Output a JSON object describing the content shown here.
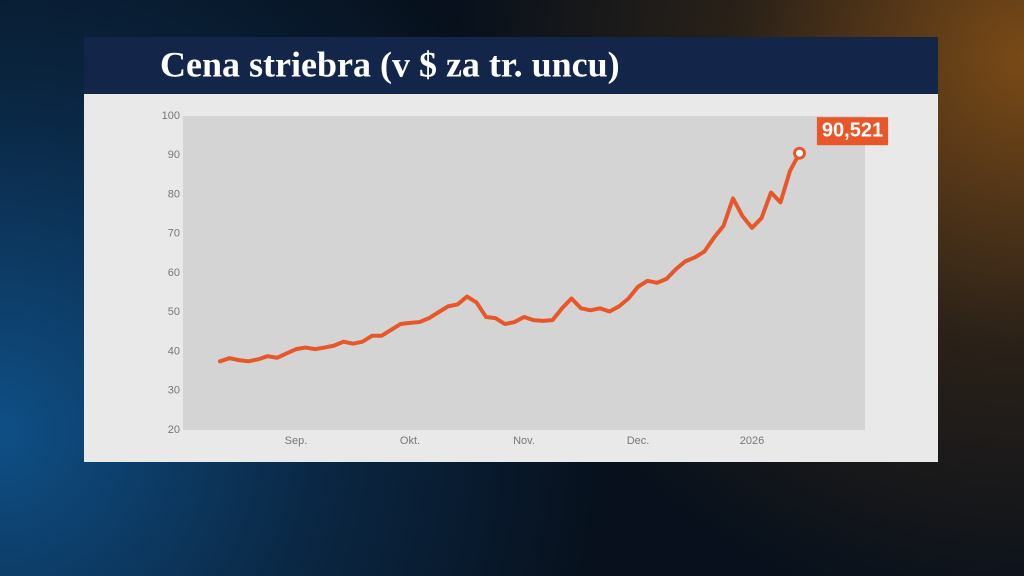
{
  "chart_data": {
    "type": "line",
    "title": "Cena striebra (v $ za tr. uncu)",
    "categories": [
      null,
      null,
      null,
      null,
      null,
      null,
      null,
      null,
      "Sep.",
      null,
      null,
      null,
      null,
      null,
      null,
      null,
      null,
      null,
      null,
      null,
      "Okt.",
      null,
      null,
      null,
      null,
      null,
      null,
      null,
      null,
      null,
      null,
      null,
      "Nov.",
      null,
      null,
      null,
      null,
      null,
      null,
      null,
      null,
      null,
      null,
      null,
      "Dec.",
      null,
      null,
      null,
      null,
      null,
      null,
      null,
      null,
      null,
      null,
      null,
      "2026",
      null,
      null,
      null,
      null,
      null
    ],
    "values": [
      37.5,
      38.3,
      37.8,
      37.5,
      38.0,
      38.8,
      38.4,
      39.5,
      40.6,
      41.0,
      40.6,
      41.0,
      41.5,
      42.5,
      42.0,
      42.5,
      44.0,
      44.0,
      45.5,
      47.0,
      47.3,
      47.5,
      48.5,
      50.0,
      51.5,
      52.0,
      54.0,
      52.5,
      48.8,
      48.5,
      47.0,
      47.5,
      48.8,
      48.0,
      47.8,
      48.0,
      51.0,
      53.5,
      51.0,
      50.5,
      51.0,
      50.2,
      51.5,
      53.5,
      56.5,
      58.0,
      57.5,
      58.5,
      61.0,
      63.0,
      64.0,
      65.5,
      69.0,
      72.0,
      79.0,
      74.5,
      71.5,
      74.0,
      80.5,
      78.0,
      86.0,
      90.521
    ],
    "value_labels": [
      null,
      null,
      null,
      null,
      null,
      null,
      null,
      null,
      null,
      null,
      null,
      null,
      null,
      null,
      null,
      null,
      null,
      null,
      null,
      null,
      null,
      null,
      null,
      null,
      null,
      null,
      null,
      null,
      null,
      null,
      null,
      null,
      null,
      null,
      null,
      null,
      null,
      null,
      null,
      null,
      null,
      null,
      null,
      null,
      null,
      null,
      null,
      null,
      null,
      null,
      null,
      null,
      null,
      null,
      null,
      null,
      null,
      null,
      null,
      null,
      null,
      "90,521"
    ],
    "color": "#e8572a",
    "ylim": [
      20,
      100
    ],
    "yticks": [
      20,
      30,
      40,
      50,
      60,
      70,
      80,
      90,
      100
    ],
    "grid": false
  }
}
